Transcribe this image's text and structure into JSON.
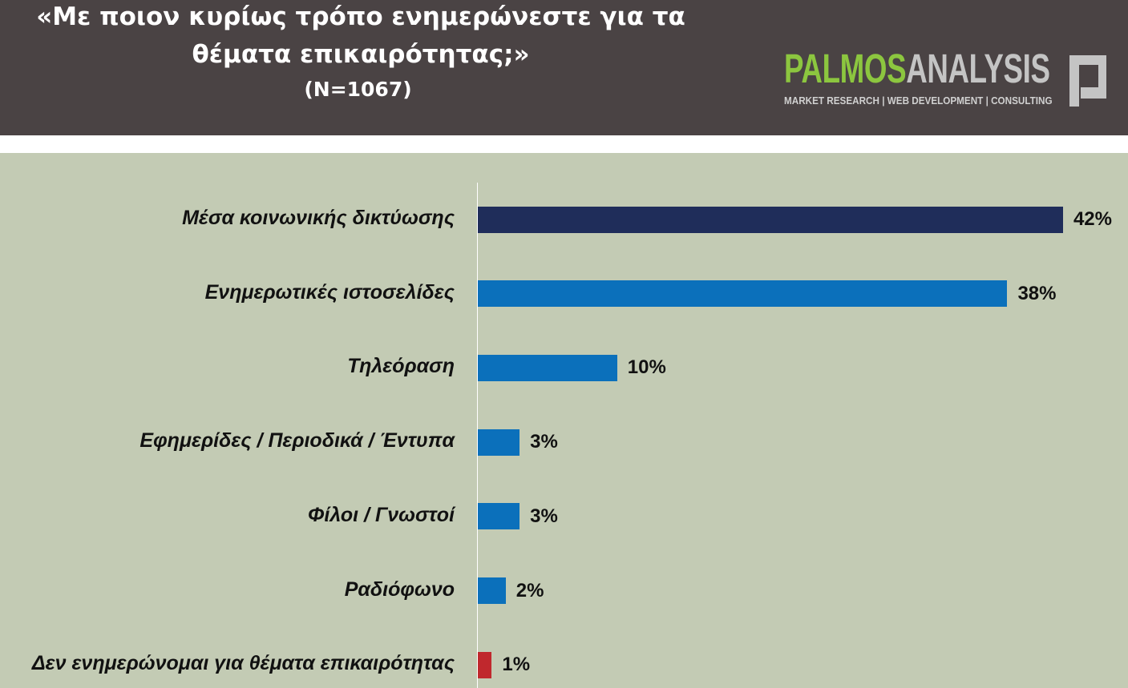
{
  "header": {
    "title_line1": "«Με ποιον κυρίως τρόπο ενημερώνεστε για τα",
    "title_line2": "θέματα επικαιρότητας;»",
    "subtitle": "(N=1067)"
  },
  "logo": {
    "word_part1": "PALMOS",
    "word_part2": "ANALYSIS",
    "tagline": "MARKET RESEARCH | WEB DEVELOPMENT | CONSULTING",
    "colors": {
      "palmos": "#8cc63f",
      "analysis": "#c4c4c4"
    }
  },
  "colors": {
    "header_bg": "#4a4344",
    "plot_bg": "#c3cbb4",
    "bar_highlight": "#1f2d5a",
    "bar_default": "#0b70bb",
    "bar_negative": "#c0282d"
  },
  "chart_data": {
    "type": "bar",
    "orientation": "horizontal",
    "title": "«Με ποιον κυρίως τρόπο ενημερώνεστε για τα θέματα επικαιρότητας;»",
    "subtitle": "(N=1067)",
    "categories": [
      "Μέσα κοινωνικής δικτύωσης",
      "Ενημερωτικές ιστοσελίδες",
      "Τηλεόραση",
      "Εφημερίδες / Περιοδικά / Έντυπα",
      "Φίλοι / Γνωστοί",
      "Ραδιόφωνο",
      "Δεν ενημερώνομαι για θέματα επικαιρότητας"
    ],
    "values": [
      42,
      38,
      10,
      3,
      3,
      2,
      1
    ],
    "value_labels": [
      "42%",
      "38%",
      "10%",
      "3%",
      "3%",
      "2%",
      "1%"
    ],
    "bar_colors": [
      "#1f2d5a",
      "#0b70bb",
      "#0b70bb",
      "#0b70bb",
      "#0b70bb",
      "#0b70bb",
      "#c0282d"
    ],
    "xlabel": "",
    "ylabel": "",
    "grid": false,
    "legend": "none"
  }
}
